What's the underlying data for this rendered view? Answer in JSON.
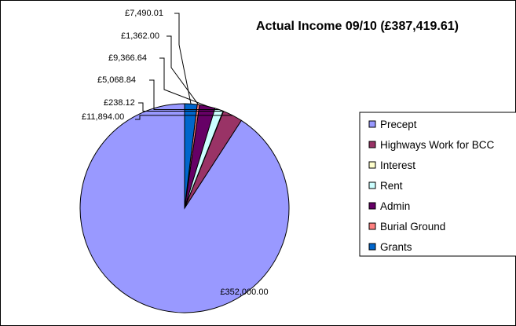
{
  "chart_data": {
    "type": "pie",
    "title": "Actual Income 09/10 (£387,419.61)",
    "slices": [
      {
        "name": "Precept",
        "value": 352000.0,
        "label": "£352,000.00",
        "color": "#9999ff"
      },
      {
        "name": "Highways Work for BCC",
        "value": 11894.0,
        "label": "£11,894.00",
        "color": "#993366"
      },
      {
        "name": "Interest",
        "value": 238.12,
        "label": "£238.12",
        "color": "#ffffcc"
      },
      {
        "name": "Rent",
        "value": 5068.84,
        "label": "£5,068.84",
        "color": "#ccffff"
      },
      {
        "name": "Admin",
        "value": 9366.64,
        "label": "£9,366.64",
        "color": "#660066"
      },
      {
        "name": "Burial Ground",
        "value": 1362.0,
        "label": "£1,362.00",
        "color": "#ff8080"
      },
      {
        "name": "Grants",
        "value": 7490.01,
        "label": "£7,490.01",
        "color": "#0066cc"
      }
    ],
    "legend_position": "right",
    "grid": false
  }
}
